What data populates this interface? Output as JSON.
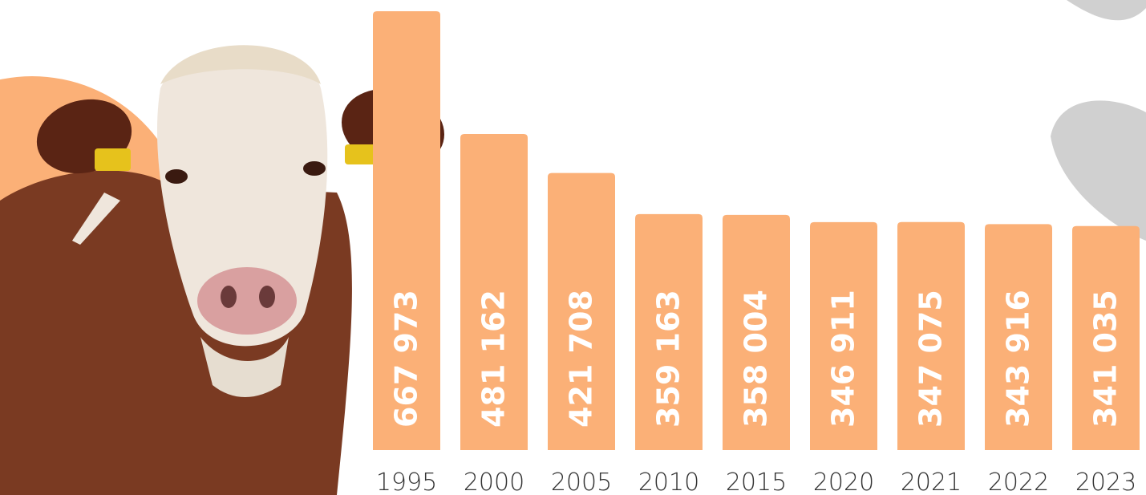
{
  "chart_data": {
    "type": "bar",
    "categories": [
      "1995",
      "2000",
      "2005",
      "2010",
      "2015",
      "2020",
      "2021",
      "2022",
      "2023"
    ],
    "values": [
      667973,
      481162,
      421708,
      359163,
      358004,
      346911,
      347075,
      343916,
      341035
    ],
    "value_labels": [
      "667 973",
      "481 162",
      "421 708",
      "359 163",
      "358 004",
      "346 911",
      "347 075",
      "343 916",
      "341 035"
    ],
    "color": "#fbb077"
  }
}
